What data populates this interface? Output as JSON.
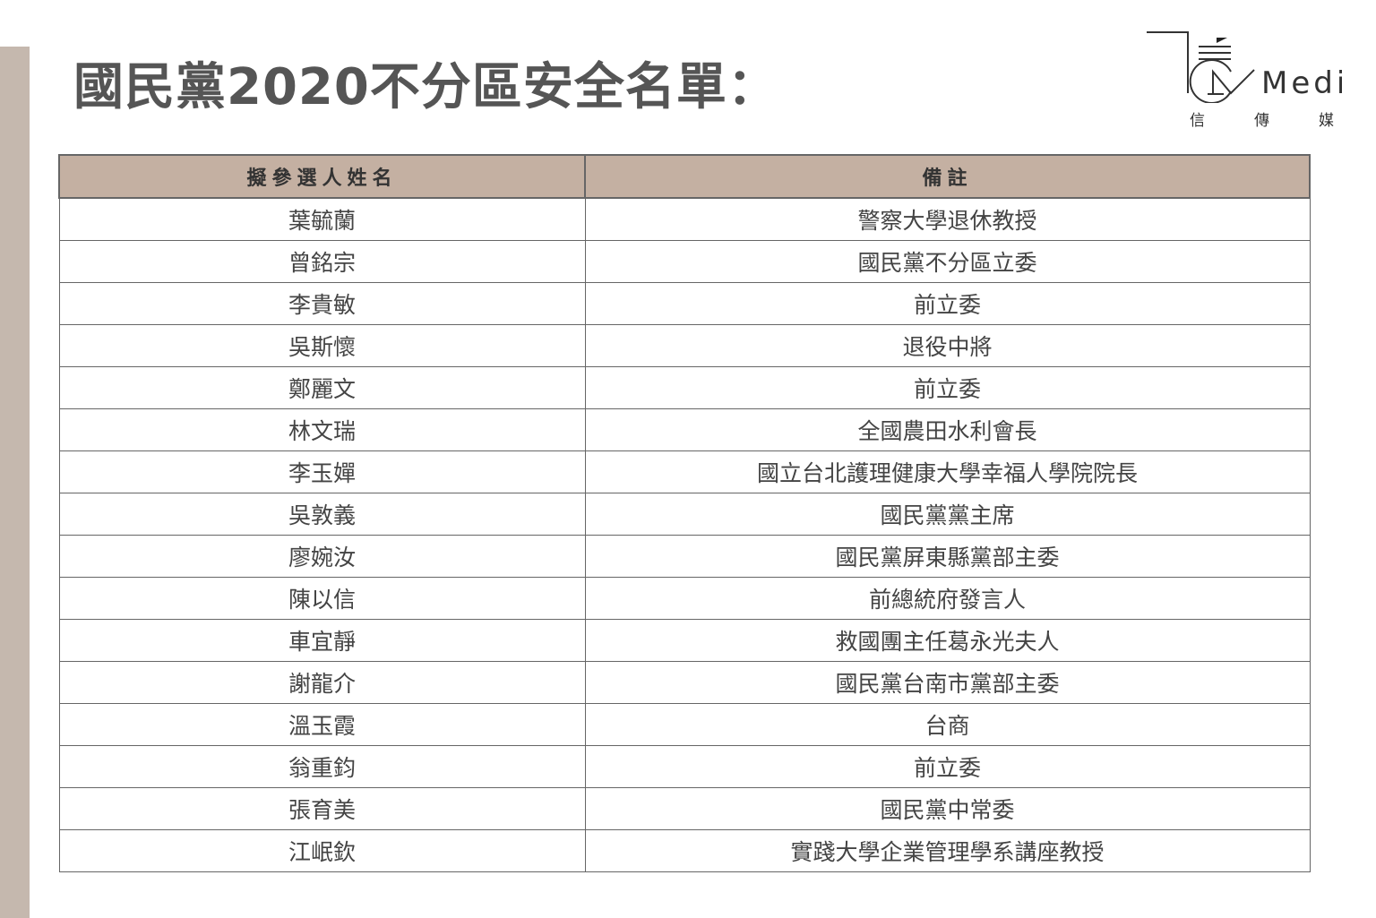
{
  "title": "國民黨2020不分區安全名單：",
  "logo": {
    "text": "Media",
    "sub": [
      "信",
      "傳",
      "媒"
    ]
  },
  "colors": {
    "header_bg": "#c4b0a2",
    "side_bar": "#c5b8ae",
    "title": "#555555"
  },
  "table": {
    "headers": [
      "擬參選人姓名",
      "備註"
    ],
    "rows": [
      [
        "葉毓蘭",
        "警察大學退休教授"
      ],
      [
        "曾銘宗",
        "國民黨不分區立委"
      ],
      [
        "李貴敏",
        "前立委"
      ],
      [
        "吳斯懷",
        "退役中將"
      ],
      [
        "鄭麗文",
        "前立委"
      ],
      [
        "林文瑞",
        "全國農田水利會長"
      ],
      [
        "李玉嬋",
        "國立台北護理健康大學幸福人學院院長"
      ],
      [
        "吳敦義",
        "國民黨黨主席"
      ],
      [
        "廖婉汝",
        "國民黨屏東縣黨部主委"
      ],
      [
        "陳以信",
        "前總統府發言人"
      ],
      [
        "車宜靜",
        "救國團主任葛永光夫人"
      ],
      [
        "謝龍介",
        "國民黨台南市黨部主委"
      ],
      [
        "溫玉霞",
        "台商"
      ],
      [
        "翁重鈞",
        "前立委"
      ],
      [
        "張育美",
        "國民黨中常委"
      ],
      [
        "江岷欽",
        "實踐大學企業管理學系講座教授"
      ]
    ]
  }
}
